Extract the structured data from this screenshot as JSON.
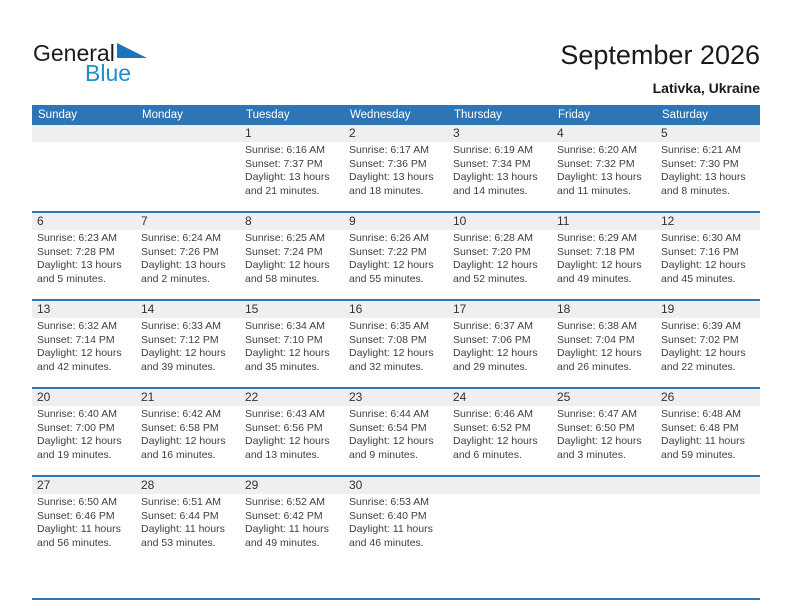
{
  "logo": {
    "general": "General",
    "blue": "Blue"
  },
  "header": {
    "title": "September 2026",
    "subtitle": "Lativka, Ukraine"
  },
  "weekdays": [
    "Sunday",
    "Monday",
    "Tuesday",
    "Wednesday",
    "Thursday",
    "Friday",
    "Saturday"
  ],
  "colors": {
    "header_blue": "#2e75b5",
    "separator_blue": "#2e75b5",
    "day_band_gray": "#efefef",
    "logo_blue": "#1f8ccd",
    "logo_triangle_blue": "#1b75bb",
    "text_dark": "#3f3f3f"
  },
  "weeks": [
    [
      {},
      {},
      {
        "day": "1",
        "sunrise": "Sunrise: 6:16 AM",
        "sunset": "Sunset: 7:37 PM",
        "daylight": "Daylight: 13 hours and 21 minutes."
      },
      {
        "day": "2",
        "sunrise": "Sunrise: 6:17 AM",
        "sunset": "Sunset: 7:36 PM",
        "daylight": "Daylight: 13 hours and 18 minutes."
      },
      {
        "day": "3",
        "sunrise": "Sunrise: 6:19 AM",
        "sunset": "Sunset: 7:34 PM",
        "daylight": "Daylight: 13 hours and 14 minutes."
      },
      {
        "day": "4",
        "sunrise": "Sunrise: 6:20 AM",
        "sunset": "Sunset: 7:32 PM",
        "daylight": "Daylight: 13 hours and 11 minutes."
      },
      {
        "day": "5",
        "sunrise": "Sunrise: 6:21 AM",
        "sunset": "Sunset: 7:30 PM",
        "daylight": "Daylight: 13 hours and 8 minutes."
      }
    ],
    [
      {
        "day": "6",
        "sunrise": "Sunrise: 6:23 AM",
        "sunset": "Sunset: 7:28 PM",
        "daylight": "Daylight: 13 hours and 5 minutes."
      },
      {
        "day": "7",
        "sunrise": "Sunrise: 6:24 AM",
        "sunset": "Sunset: 7:26 PM",
        "daylight": "Daylight: 13 hours and 2 minutes."
      },
      {
        "day": "8",
        "sunrise": "Sunrise: 6:25 AM",
        "sunset": "Sunset: 7:24 PM",
        "daylight": "Daylight: 12 hours and 58 minutes."
      },
      {
        "day": "9",
        "sunrise": "Sunrise: 6:26 AM",
        "sunset": "Sunset: 7:22 PM",
        "daylight": "Daylight: 12 hours and 55 minutes."
      },
      {
        "day": "10",
        "sunrise": "Sunrise: 6:28 AM",
        "sunset": "Sunset: 7:20 PM",
        "daylight": "Daylight: 12 hours and 52 minutes."
      },
      {
        "day": "11",
        "sunrise": "Sunrise: 6:29 AM",
        "sunset": "Sunset: 7:18 PM",
        "daylight": "Daylight: 12 hours and 49 minutes."
      },
      {
        "day": "12",
        "sunrise": "Sunrise: 6:30 AM",
        "sunset": "Sunset: 7:16 PM",
        "daylight": "Daylight: 12 hours and 45 minutes."
      }
    ],
    [
      {
        "day": "13",
        "sunrise": "Sunrise: 6:32 AM",
        "sunset": "Sunset: 7:14 PM",
        "daylight": "Daylight: 12 hours and 42 minutes."
      },
      {
        "day": "14",
        "sunrise": "Sunrise: 6:33 AM",
        "sunset": "Sunset: 7:12 PM",
        "daylight": "Daylight: 12 hours and 39 minutes."
      },
      {
        "day": "15",
        "sunrise": "Sunrise: 6:34 AM",
        "sunset": "Sunset: 7:10 PM",
        "daylight": "Daylight: 12 hours and 35 minutes."
      },
      {
        "day": "16",
        "sunrise": "Sunrise: 6:35 AM",
        "sunset": "Sunset: 7:08 PM",
        "daylight": "Daylight: 12 hours and 32 minutes."
      },
      {
        "day": "17",
        "sunrise": "Sunrise: 6:37 AM",
        "sunset": "Sunset: 7:06 PM",
        "daylight": "Daylight: 12 hours and 29 minutes."
      },
      {
        "day": "18",
        "sunrise": "Sunrise: 6:38 AM",
        "sunset": "Sunset: 7:04 PM",
        "daylight": "Daylight: 12 hours and 26 minutes."
      },
      {
        "day": "19",
        "sunrise": "Sunrise: 6:39 AM",
        "sunset": "Sunset: 7:02 PM",
        "daylight": "Daylight: 12 hours and 22 minutes."
      }
    ],
    [
      {
        "day": "20",
        "sunrise": "Sunrise: 6:40 AM",
        "sunset": "Sunset: 7:00 PM",
        "daylight": "Daylight: 12 hours and 19 minutes."
      },
      {
        "day": "21",
        "sunrise": "Sunrise: 6:42 AM",
        "sunset": "Sunset: 6:58 PM",
        "daylight": "Daylight: 12 hours and 16 minutes."
      },
      {
        "day": "22",
        "sunrise": "Sunrise: 6:43 AM",
        "sunset": "Sunset: 6:56 PM",
        "daylight": "Daylight: 12 hours and 13 minutes."
      },
      {
        "day": "23",
        "sunrise": "Sunrise: 6:44 AM",
        "sunset": "Sunset: 6:54 PM",
        "daylight": "Daylight: 12 hours and 9 minutes."
      },
      {
        "day": "24",
        "sunrise": "Sunrise: 6:46 AM",
        "sunset": "Sunset: 6:52 PM",
        "daylight": "Daylight: 12 hours and 6 minutes."
      },
      {
        "day": "25",
        "sunrise": "Sunrise: 6:47 AM",
        "sunset": "Sunset: 6:50 PM",
        "daylight": "Daylight: 12 hours and 3 minutes."
      },
      {
        "day": "26",
        "sunrise": "Sunrise: 6:48 AM",
        "sunset": "Sunset: 6:48 PM",
        "daylight": "Daylight: 11 hours and 59 minutes."
      }
    ],
    [
      {
        "day": "27",
        "sunrise": "Sunrise: 6:50 AM",
        "sunset": "Sunset: 6:46 PM",
        "daylight": "Daylight: 11 hours and 56 minutes."
      },
      {
        "day": "28",
        "sunrise": "Sunrise: 6:51 AM",
        "sunset": "Sunset: 6:44 PM",
        "daylight": "Daylight: 11 hours and 53 minutes."
      },
      {
        "day": "29",
        "sunrise": "Sunrise: 6:52 AM",
        "sunset": "Sunset: 6:42 PM",
        "daylight": "Daylight: 11 hours and 49 minutes."
      },
      {
        "day": "30",
        "sunrise": "Sunrise: 6:53 AM",
        "sunset": "Sunset: 6:40 PM",
        "daylight": "Daylight: 11 hours and 46 minutes."
      },
      {},
      {},
      {}
    ]
  ]
}
